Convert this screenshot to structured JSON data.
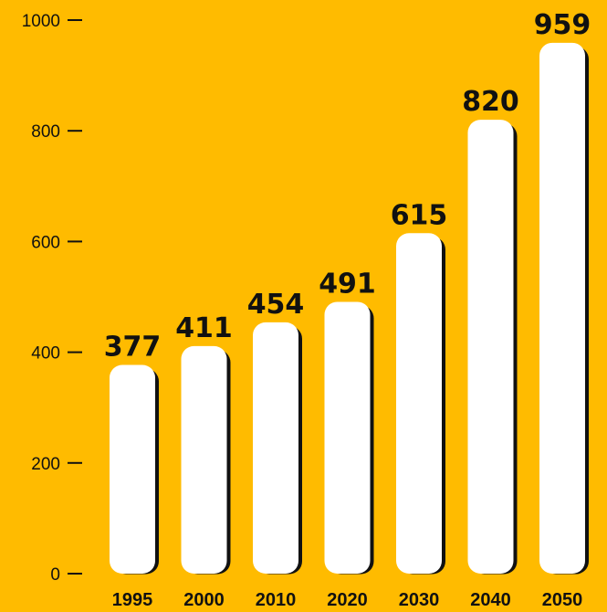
{
  "chart_data": {
    "type": "bar",
    "categories": [
      "1995",
      "2000",
      "2010",
      "2020",
      "2030",
      "2040",
      "2050"
    ],
    "values": [
      377,
      411,
      454,
      491,
      615,
      820,
      959
    ],
    "data_labels": [
      "377",
      "411",
      "454",
      "491",
      "615",
      "820",
      "959"
    ],
    "yticks": [
      0,
      200,
      400,
      600,
      800,
      1000
    ],
    "ytick_labels": [
      "0",
      "200",
      "400",
      "600",
      "800",
      "1000"
    ],
    "ylim": [
      0,
      1000
    ],
    "title": "",
    "xlabel": "",
    "ylabel": "",
    "grid": false,
    "colors": {
      "background": "#FFBB00",
      "bar": "#FFFFFF",
      "bar_shadow": "#111111",
      "text": "#111111"
    }
  }
}
